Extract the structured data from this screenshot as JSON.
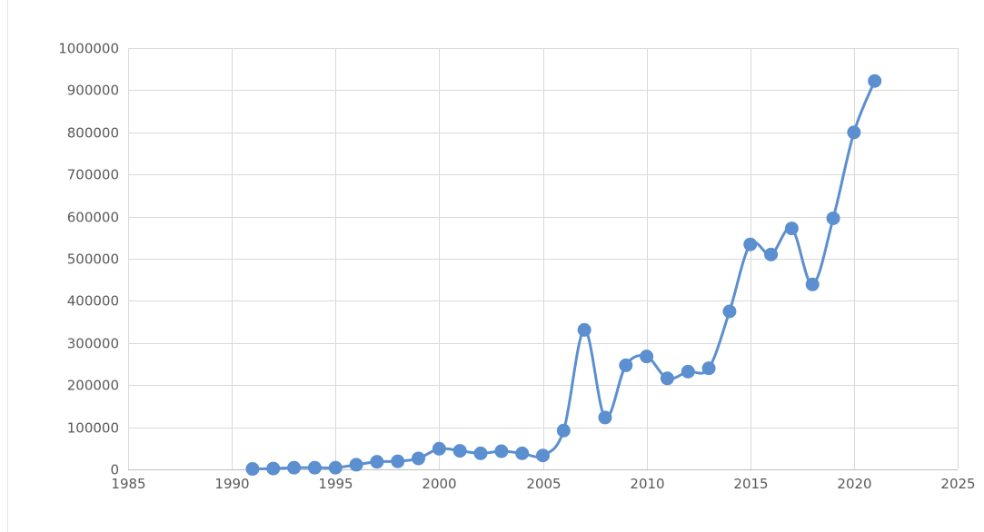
{
  "chart_data": {
    "type": "scatter",
    "title": "",
    "xlabel": "",
    "ylabel": "",
    "xlim": [
      1985,
      2025
    ],
    "ylim": [
      0,
      1000000
    ],
    "x_ticks": [
      1985,
      1990,
      1995,
      2000,
      2005,
      2010,
      2015,
      2020,
      2025
    ],
    "y_ticks": [
      0,
      100000,
      200000,
      300000,
      400000,
      500000,
      600000,
      700000,
      800000,
      900000,
      1000000
    ],
    "x_tick_labels": [
      "1985",
      "1990",
      "1995",
      "2000",
      "2005",
      "2010",
      "2015",
      "2020",
      "2025"
    ],
    "y_tick_labels": [
      "0",
      "100000",
      "200000",
      "300000",
      "400000",
      "500000",
      "600000",
      "700000",
      "800000",
      "900000",
      "1000000"
    ],
    "grid": true,
    "legend": "none",
    "line_style": "smooth",
    "color": "#5b8fcf",
    "series": [
      {
        "x": [
          1991,
          1992,
          1993,
          1994,
          1995,
          1996,
          1997,
          1998,
          1999,
          2000,
          2001,
          2002,
          2003,
          2004,
          2005,
          2006,
          2007,
          2008,
          2009,
          2010,
          2011,
          2012,
          2013,
          2014,
          2015,
          2016,
          2017,
          2018,
          2019,
          2020,
          2021
        ],
        "y": [
          1000,
          2000,
          4000,
          4000,
          4000,
          11000,
          18000,
          19000,
          26000,
          49000,
          44000,
          38000,
          43000,
          38000,
          33000,
          92000,
          331000,
          123000,
          247000,
          268000,
          216000,
          232000,
          240000,
          375000,
          534000,
          510000,
          572000,
          439000,
          596000,
          800000,
          922000
        ]
      }
    ]
  }
}
